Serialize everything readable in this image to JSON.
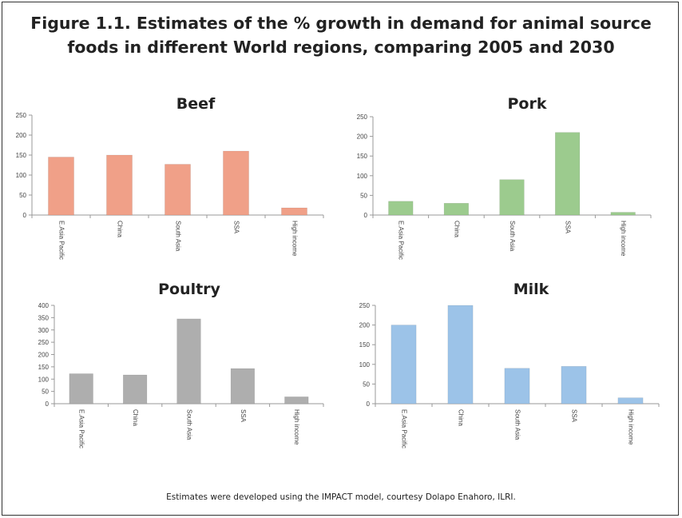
{
  "figure": {
    "title_line1": "Figure 1.1.  Estimates of the % growth in demand for animal source",
    "title_line2": "foods in different World regions, comparing 2005 and 2030",
    "footnote": "Estimates were developed using the IMPACT model, courtesy Dolapo Enahoro, ILRI."
  },
  "chart_data": [
    {
      "type": "bar",
      "title": "Beef",
      "categories": [
        "E.Asia Pacific",
        "China",
        "South Asia",
        "SSA",
        "High income"
      ],
      "values": [
        145,
        150,
        127,
        160,
        18
      ],
      "ylim": [
        0,
        250
      ],
      "yticks": [
        0,
        50,
        100,
        150,
        200,
        250
      ],
      "color": "#F0A088",
      "grid": false,
      "legend": false
    },
    {
      "type": "bar",
      "title": "Pork",
      "categories": [
        "E.Asia Pacific",
        "China",
        "South Asia",
        "SSA",
        "High income"
      ],
      "values": [
        35,
        30,
        90,
        210,
        7
      ],
      "ylim": [
        0,
        250
      ],
      "yticks": [
        0,
        50,
        100,
        150,
        200,
        250
      ],
      "color": "#9CCB8E",
      "grid": false,
      "legend": false
    },
    {
      "type": "bar",
      "title": "Poultry",
      "categories": [
        "E.Asia Pacific",
        "China",
        "South Asia",
        "SSA",
        "High income"
      ],
      "values": [
        122,
        117,
        345,
        143,
        28
      ],
      "ylim": [
        0,
        400
      ],
      "yticks": [
        0,
        50,
        100,
        150,
        200,
        250,
        300,
        350,
        400
      ],
      "color": "#AEAEAE",
      "grid": false,
      "legend": false
    },
    {
      "type": "bar",
      "title": "Milk",
      "categories": [
        "E.Asia Pacific",
        "China",
        "South Asia",
        "SSA",
        "High income"
      ],
      "values": [
        200,
        250,
        90,
        95,
        15
      ],
      "ylim": [
        0,
        250
      ],
      "yticks": [
        0,
        50,
        100,
        150,
        200,
        250
      ],
      "color": "#9CC3E8",
      "grid": false,
      "legend": false
    }
  ]
}
